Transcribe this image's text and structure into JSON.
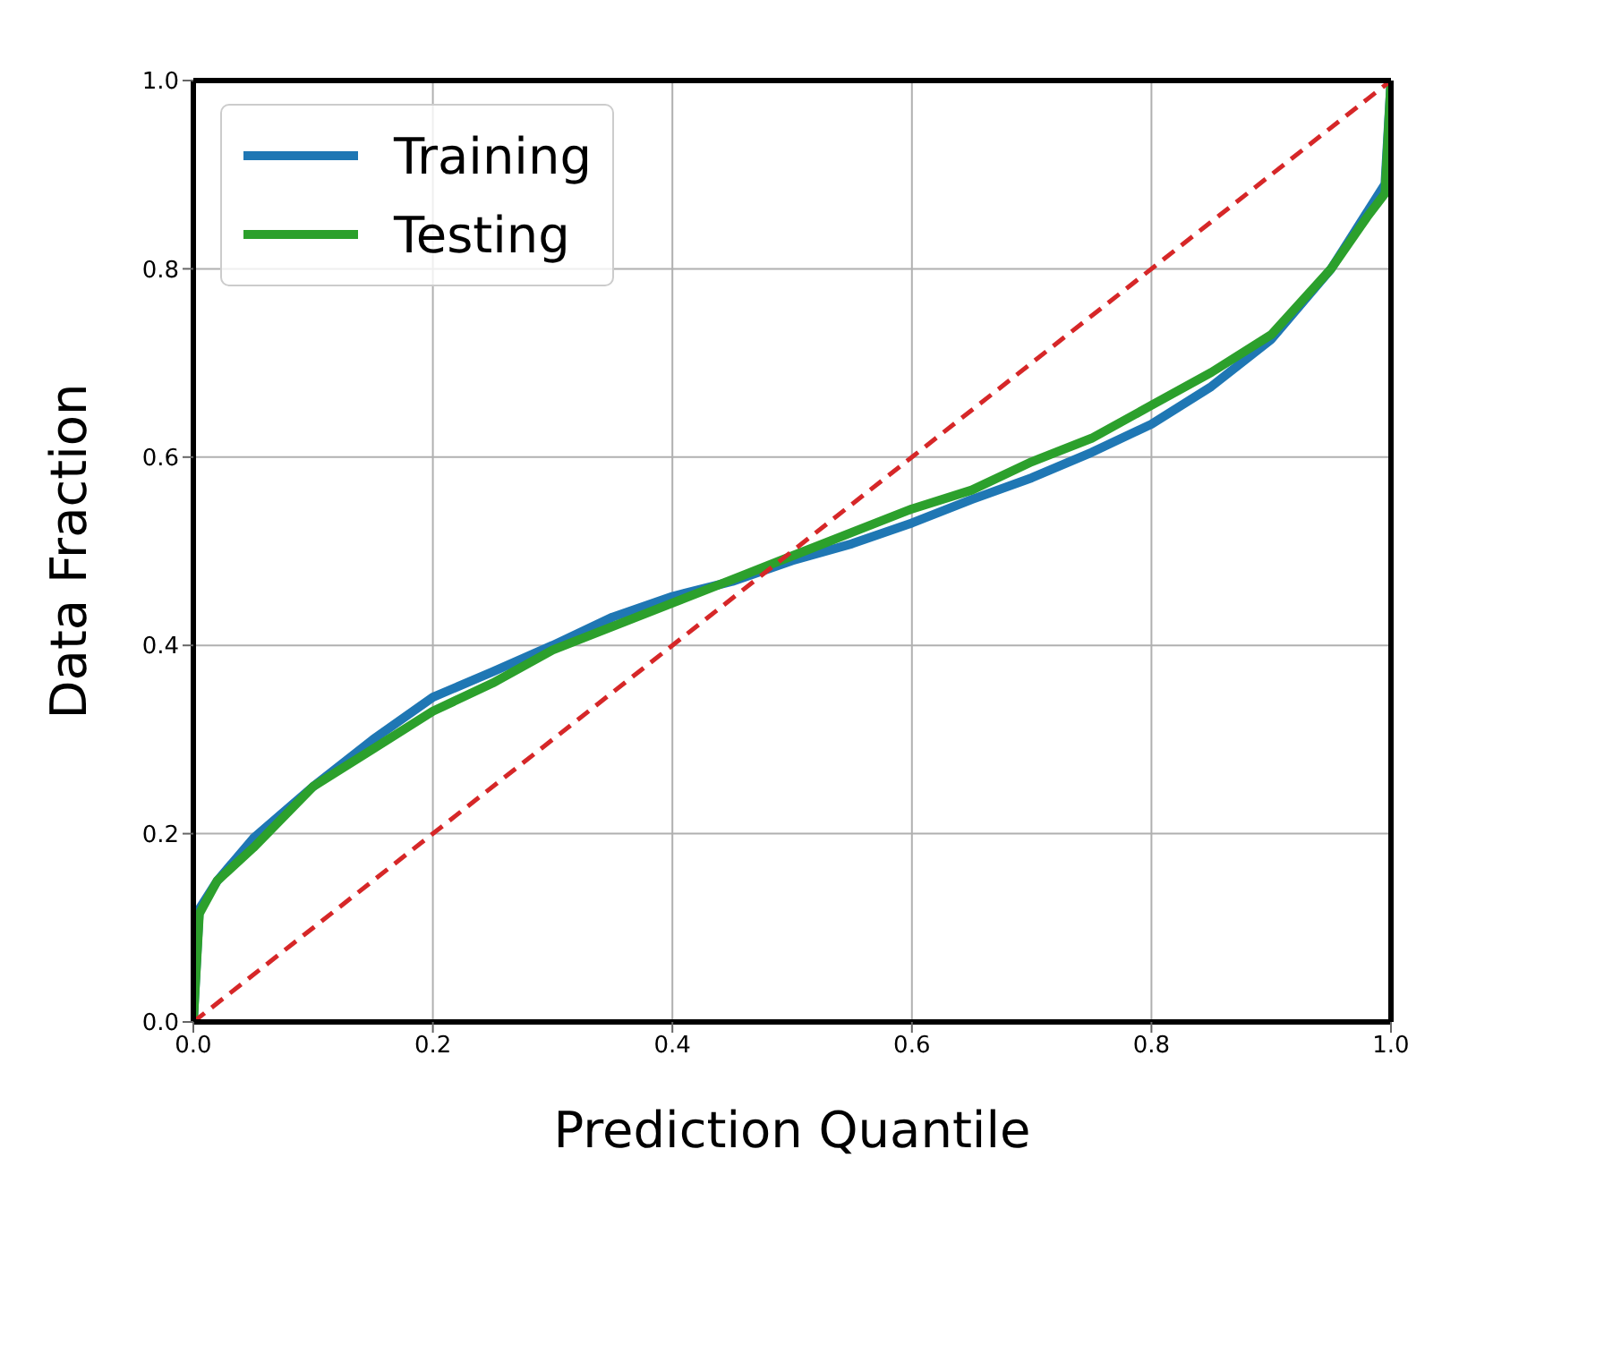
{
  "chart_data": {
    "type": "line",
    "xlabel": "Prediction Quantile",
    "ylabel": "Data Fraction",
    "xlim": [
      0,
      1
    ],
    "ylim": [
      0,
      1
    ],
    "xticks": [
      {
        "value": 0,
        "label": "0.0"
      },
      0.2,
      0.4,
      0.6,
      0.8,
      {
        "value": 1,
        "label": "1.0"
      }
    ],
    "yticks": [
      {
        "value": 0,
        "label": "0.0"
      },
      0.2,
      0.4,
      0.6,
      0.8,
      {
        "value": 1,
        "label": "1.0"
      }
    ],
    "grid": true,
    "legend": "top left",
    "marker": "none",
    "series": [
      {
        "name": "Training",
        "color": "#1f77b4",
        "line_style": "solid",
        "x": [
          0,
          0.005,
          0.02,
          0.05,
          0.1,
          0.15,
          0.2,
          0.25,
          0.3,
          0.35,
          0.4,
          0.45,
          0.5,
          0.55,
          0.6,
          0.65,
          0.7,
          0.75,
          0.8,
          0.85,
          0.9,
          0.95,
          0.98,
          0.995,
          1
        ],
        "values": [
          0,
          0.12,
          0.15,
          0.195,
          0.25,
          0.3,
          0.345,
          0.372,
          0.4,
          0.43,
          0.452,
          0.468,
          0.49,
          0.508,
          0.53,
          0.555,
          0.578,
          0.605,
          0.635,
          0.675,
          0.725,
          0.8,
          0.86,
          0.89,
          1
        ]
      },
      {
        "name": "Testing",
        "color": "#2ca02c",
        "line_style": "solid",
        "x": [
          0,
          0.005,
          0.02,
          0.05,
          0.1,
          0.15,
          0.2,
          0.25,
          0.3,
          0.35,
          0.4,
          0.45,
          0.5,
          0.55,
          0.6,
          0.65,
          0.7,
          0.75,
          0.8,
          0.85,
          0.9,
          0.95,
          0.98,
          0.995,
          1
        ],
        "values": [
          0,
          0.115,
          0.15,
          0.185,
          0.25,
          0.29,
          0.33,
          0.36,
          0.395,
          0.42,
          0.445,
          0.47,
          0.495,
          0.52,
          0.545,
          0.565,
          0.595,
          0.62,
          0.655,
          0.69,
          0.73,
          0.8,
          0.855,
          0.88,
          1
        ]
      },
      {
        "color": "#d62728",
        "line_style": "dashed",
        "x": [
          0,
          1
        ],
        "values": [
          0,
          1
        ]
      }
    ]
  }
}
